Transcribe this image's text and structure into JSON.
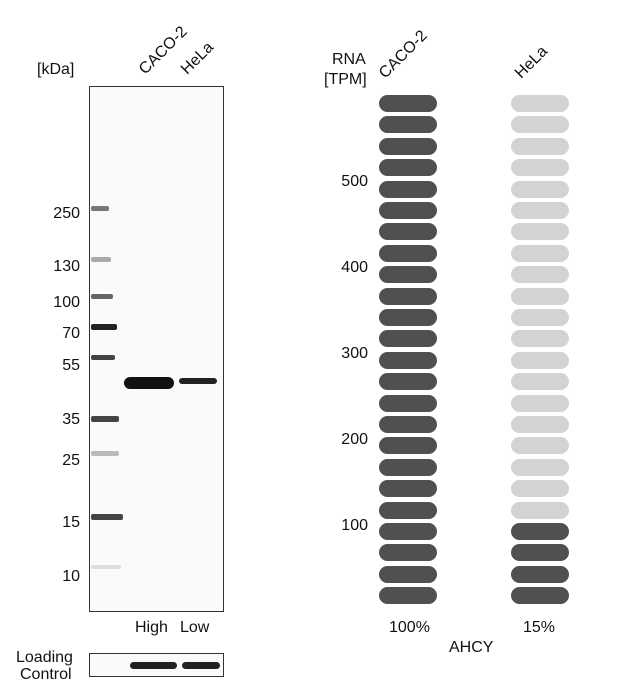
{
  "western_blot": {
    "kda_label": "[kDa]",
    "lanes": [
      "CACO-2",
      "HeLa"
    ],
    "mw_markers": [
      "250",
      "130",
      "100",
      "70",
      "55",
      "35",
      "25",
      "15",
      "10"
    ],
    "expression_levels": [
      "High",
      "Low"
    ],
    "loading_control_line1": "Loading",
    "loading_control_line2": "Control"
  },
  "rna": {
    "axis_title_line1": "RNA",
    "axis_title_line2": "[TPM]",
    "y_ticks": [
      "500",
      "400",
      "300",
      "200",
      "100"
    ],
    "gene": "AHCY"
  },
  "chart_data": {
    "type": "bar",
    "title": "",
    "ylabel": "RNA [TPM]",
    "xlabel": "AHCY",
    "categories": [
      "CACO-2",
      "HeLa"
    ],
    "values_percent": [
      100,
      15
    ],
    "value_labels": [
      "100%",
      "15%"
    ],
    "segments_total": 24,
    "segments_filled": [
      24,
      4
    ],
    "colors": {
      "CACO-2_filled": "#505050",
      "HeLa_filled": "#505050",
      "empty": "#d3d3d3"
    },
    "y_tick_values": [
      100,
      200,
      300,
      400,
      500
    ]
  }
}
